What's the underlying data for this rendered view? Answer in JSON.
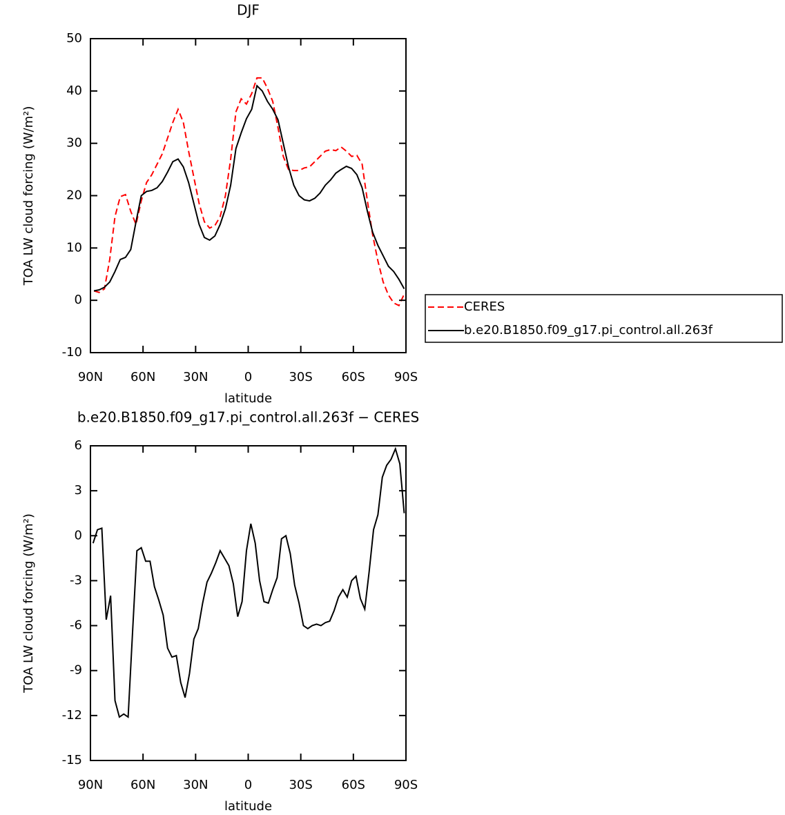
{
  "chart_data": [
    {
      "type": "line",
      "title": "DJF",
      "xlabel": "latitude",
      "ylabel": "TOA LW cloud forcing (W/m²)",
      "x": [
        88,
        85,
        82,
        79,
        76,
        73,
        70,
        67,
        64,
        61,
        58,
        55,
        52,
        49,
        46,
        43,
        40,
        37,
        34,
        31,
        28,
        25,
        22,
        19,
        16,
        13,
        10,
        7,
        4,
        1,
        -2,
        -5,
        -8,
        -11,
        -14,
        -17,
        -20,
        -23,
        -26,
        -29,
        -32,
        -35,
        -38,
        -41,
        -44,
        -47,
        -50,
        -53,
        -56,
        -59,
        -62,
        -65,
        -68,
        -71,
        -74,
        -77,
        -80,
        -83,
        -86,
        -89
      ],
      "series": [
        {
          "name": "CERES",
          "color": "#ff0000",
          "dash": "dashed",
          "values": [
            1.8,
            1.5,
            2.2,
            7.8,
            16,
            19.8,
            20.2,
            17,
            14.5,
            19,
            22.5,
            24,
            26,
            28,
            31,
            34,
            36.5,
            34,
            28.5,
            23.5,
            18.5,
            15,
            13.8,
            14.3,
            16,
            20,
            27,
            36,
            38.5,
            37.5,
            39.5,
            42.5,
            42.5,
            40.5,
            38,
            33,
            27.5,
            25,
            24.8,
            24.8,
            25.3,
            25.5,
            26.5,
            27.5,
            28.5,
            28.8,
            28.6,
            29.3,
            28.5,
            27.5,
            27.7,
            26,
            19,
            12.5,
            7.5,
            3.5,
            1,
            -0.5,
            -1,
            1.2
          ]
        },
        {
          "name": "b.e20.B1850.f09_g17.pi_control.all.263f",
          "color": "#000000",
          "dash": "solid",
          "values": [
            1.8,
            2,
            2.5,
            3.5,
            5.5,
            7.8,
            8.2,
            9.7,
            15,
            20,
            20.8,
            21,
            21.5,
            22.7,
            24.5,
            26.5,
            27,
            25.5,
            22.5,
            18.5,
            14.5,
            12,
            11.5,
            12.3,
            14.5,
            17.5,
            22,
            29,
            32,
            34.7,
            36.5,
            41,
            40,
            38,
            36.5,
            34.5,
            30,
            25.5,
            22,
            20,
            19.2,
            19,
            19.5,
            20.5,
            22,
            23,
            24.3,
            25,
            25.6,
            25.2,
            24,
            21.5,
            17,
            13,
            10.5,
            8.5,
            6.5,
            5.5,
            4,
            2.2
          ]
        }
      ],
      "xlim": [
        90,
        -90
      ],
      "xticks": [
        {
          "value": 90,
          "label": "90N"
        },
        {
          "value": 60,
          "label": "60N"
        },
        {
          "value": 30,
          "label": "30N"
        },
        0,
        {
          "value": -30,
          "label": "30S"
        },
        {
          "value": -60,
          "label": "60S"
        },
        {
          "value": -90,
          "label": "90S"
        }
      ],
      "ylim": [
        -10,
        50
      ],
      "yticks": [
        -10,
        0,
        10,
        20,
        30,
        40,
        50
      ],
      "grid": false,
      "legend": "outside right"
    },
    {
      "type": "line",
      "title": "b.e20.B1850.f09_g17.pi_control.all.263f − CERES",
      "xlabel": "latitude",
      "ylabel": "TOA LW cloud forcing (W/m²)",
      "x": [
        88.5,
        86,
        83.5,
        81,
        78.5,
        76,
        73.5,
        71,
        68.5,
        66,
        63.5,
        61,
        58.5,
        56,
        53.5,
        51,
        48.5,
        46,
        43.5,
        41,
        38.5,
        36,
        33.5,
        31,
        28.5,
        26,
        23.5,
        21,
        18.5,
        16,
        13.5,
        11,
        8.5,
        6,
        3.5,
        1,
        -1.5,
        -4,
        -6.5,
        -9,
        -11.5,
        -14,
        -16.5,
        -19,
        -21.5,
        -24,
        -26.5,
        -29,
        -31.5,
        -34,
        -36.5,
        -39,
        -41.5,
        -44,
        -46.5,
        -49,
        -51.5,
        -54,
        -56.5,
        -59,
        -61.5,
        -64,
        -66.5,
        -69,
        -71.5,
        -74,
        -76.5,
        -79,
        -81.5,
        -84,
        -86.5,
        -89
      ],
      "series": [
        {
          "color": "#000000",
          "dash": "solid",
          "values": [
            -0.5,
            0.4,
            0.5,
            -5.6,
            -4,
            -11,
            -12.1,
            -11.9,
            -12.1,
            -6.5,
            -1,
            -0.8,
            -1.7,
            -1.7,
            -3.4,
            -4.3,
            -5.3,
            -7.5,
            -8.1,
            -8,
            -9.8,
            -10.8,
            -9.2,
            -6.9,
            -6.2,
            -4.5,
            -3.1,
            -2.5,
            -1.8,
            -1,
            -1.5,
            -2,
            -3.2,
            -5.4,
            -4.4,
            -1,
            0.8,
            -0.5,
            -3,
            -4.4,
            -4.5,
            -3.6,
            -2.8,
            -0.2,
            0,
            -1.2,
            -3.3,
            -4.5,
            -6,
            -6.2,
            -6,
            -5.9,
            -6,
            -5.8,
            -5.7,
            -5,
            -4.1,
            -3.6,
            -4.1,
            -3,
            -2.7,
            -4.2,
            -4.9,
            -2.4,
            0.4,
            1.4,
            3.9,
            4.7,
            5.1,
            5.8,
            4.8,
            1.5
          ]
        }
      ],
      "xlim": [
        90,
        -90
      ],
      "xticks": [
        {
          "value": 90,
          "label": "90N"
        },
        {
          "value": 60,
          "label": "60N"
        },
        {
          "value": 30,
          "label": "30N"
        },
        0,
        {
          "value": -30,
          "label": "30S"
        },
        {
          "value": -60,
          "label": "60S"
        },
        {
          "value": -90,
          "label": "90S"
        }
      ],
      "ylim": [
        -15,
        6
      ],
      "yticks": [
        -15,
        -12,
        -9,
        -6,
        -3,
        0,
        3,
        6
      ],
      "grid": false
    }
  ]
}
